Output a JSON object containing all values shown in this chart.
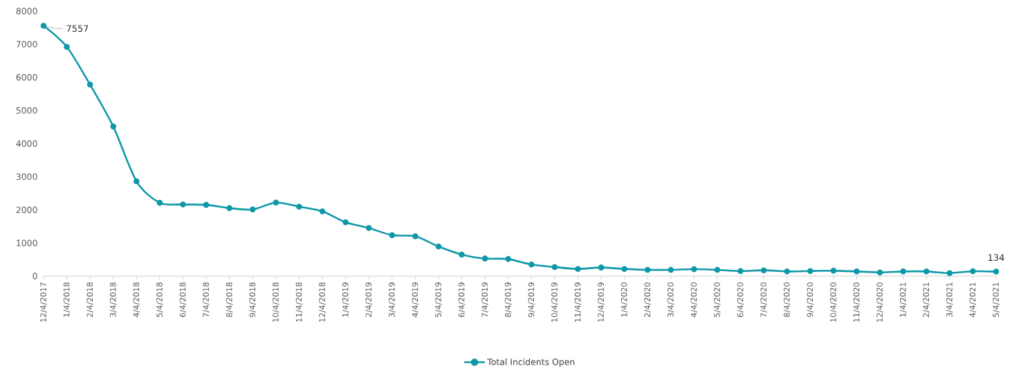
{
  "chart_data": {
    "type": "line",
    "categories": [
      "12/4/2017",
      "1/4/2018",
      "2/4/2018",
      "3/4/2018",
      "4/4/2018",
      "5/4/2018",
      "6/4/2018",
      "7/4/2018",
      "8/4/2018",
      "9/4/2018",
      "10/4/2018",
      "11/4/2018",
      "12/4/2018",
      "1/4/2019",
      "2/4/2019",
      "3/4/2019",
      "4/4/2019",
      "5/4/2019",
      "6/4/2019",
      "7/4/2019",
      "8/4/2019",
      "9/4/2019",
      "10/4/2019",
      "11/4/2019",
      "12/4/2019",
      "1/4/2020",
      "2/4/2020",
      "3/4/2020",
      "4/4/2020",
      "5/4/2020",
      "6/4/2020",
      "7/4/2020",
      "8/4/2020",
      "9/4/2020",
      "10/4/2020",
      "11/4/2020",
      "12/4/2020",
      "1/4/2021",
      "2/4/2021",
      "3/4/2021",
      "4/4/2021",
      "5/4/2021"
    ],
    "series": [
      {
        "name": "Total Incidents Open",
        "color": "#0e98a8",
        "values": [
          7557,
          6920,
          5780,
          4515,
          2860,
          2211,
          2163,
          2149,
          2052,
          2010,
          2220,
          2094,
          1954,
          1625,
          1451,
          1235,
          1200,
          892,
          649,
          530,
          515,
          348,
          272,
          216,
          258,
          216,
          188,
          188,
          210,
          188,
          153,
          174,
          139,
          153,
          160,
          139,
          111,
          139,
          139,
          90,
          146,
          134
        ]
      }
    ],
    "ylim": [
      0,
      8000
    ],
    "yticks": [
      0,
      1000,
      2000,
      3000,
      4000,
      5000,
      6000,
      7000,
      8000
    ],
    "grid": false,
    "legend": "bottom",
    "marker": "circle",
    "line_style": "solid",
    "annotations": [
      {
        "text": "7557",
        "x": "12/4/2017",
        "y": 7557
      },
      {
        "text": "134",
        "x": "5/4/2021",
        "y": 134
      }
    ]
  }
}
